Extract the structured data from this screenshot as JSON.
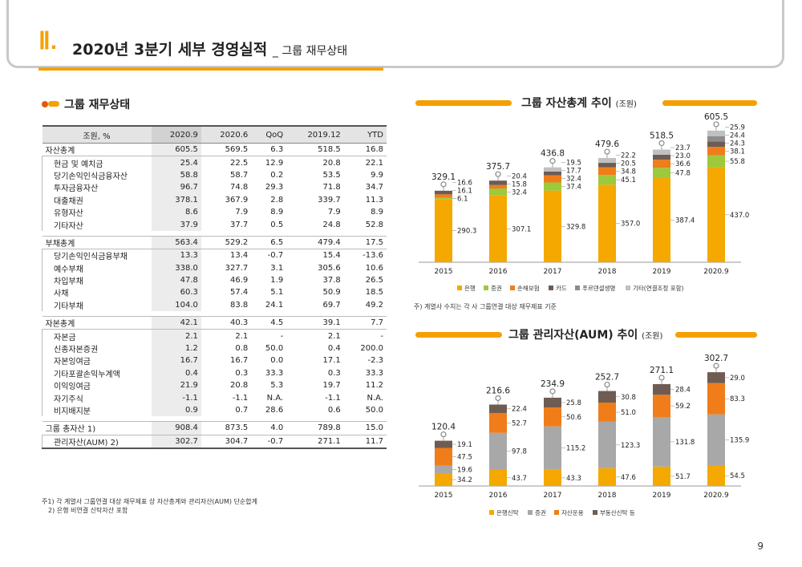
{
  "header": {
    "roman": "Ⅱ.",
    "title": "2020년 3분기 세부 경영실적",
    "subtitle": "_ 그룹 재무상태"
  },
  "left_section_title": "그룹 재무상태",
  "table": {
    "columns": [
      "조원, %",
      "2020.9",
      "2020.6",
      "QoQ",
      "2019.12",
      "YTD"
    ],
    "rows": [
      {
        "label": "자산총계",
        "type": "major",
        "values": [
          "605.5",
          "569.5",
          "6.3",
          "518.5",
          "16.8"
        ]
      },
      {
        "label": "현금 및 예치금",
        "type": "sub",
        "values": [
          "25.4",
          "22.5",
          "12.9",
          "20.8",
          "22.1"
        ]
      },
      {
        "label": "당기손익인식금융자산",
        "type": "sub",
        "values": [
          "58.8",
          "58.7",
          "0.2",
          "53.5",
          "9.9"
        ]
      },
      {
        "label": "투자금융자산",
        "type": "sub",
        "values": [
          "96.7",
          "74.8",
          "29.3",
          "71.8",
          "34.7"
        ]
      },
      {
        "label": "대출채권",
        "type": "sub",
        "values": [
          "378.1",
          "367.9",
          "2.8",
          "339.7",
          "11.3"
        ]
      },
      {
        "label": "유형자산",
        "type": "sub",
        "values": [
          "8.6",
          "7.9",
          "8.9",
          "7.9",
          "8.9"
        ]
      },
      {
        "label": "기타자산",
        "type": "sub",
        "values": [
          "37.9",
          "37.7",
          "0.5",
          "24.8",
          "52.8"
        ]
      },
      {
        "label": "부채총계",
        "type": "major",
        "values": [
          "563.4",
          "529.2",
          "6.5",
          "479.4",
          "17.5"
        ]
      },
      {
        "label": "당기손익인식금융부채",
        "type": "sub",
        "values": [
          "13.3",
          "13.4",
          "-0.7",
          "15.4",
          "-13.6"
        ]
      },
      {
        "label": "예수부채",
        "type": "sub",
        "values": [
          "338.0",
          "327.7",
          "3.1",
          "305.6",
          "10.6"
        ]
      },
      {
        "label": "차입부채",
        "type": "sub",
        "values": [
          "47.8",
          "46.9",
          "1.9",
          "37.8",
          "26.5"
        ]
      },
      {
        "label": "사채",
        "type": "sub",
        "values": [
          "60.3",
          "57.4",
          "5.1",
          "50.9",
          "18.5"
        ]
      },
      {
        "label": "기타부채",
        "type": "sub",
        "values": [
          "104.0",
          "83.8",
          "24.1",
          "69.7",
          "49.2"
        ]
      },
      {
        "label": "자본총계",
        "type": "major",
        "values": [
          "42.1",
          "40.3",
          "4.5",
          "39.1",
          "7.7"
        ]
      },
      {
        "label": "자본금",
        "type": "sub",
        "values": [
          "2.1",
          "2.1",
          "-",
          "2.1",
          "-"
        ]
      },
      {
        "label": "신종자본증권",
        "type": "sub",
        "values": [
          "1.2",
          "0.8",
          "50.0",
          "0.4",
          "200.0"
        ]
      },
      {
        "label": "자본잉여금",
        "type": "sub",
        "values": [
          "16.7",
          "16.7",
          "0.0",
          "17.1",
          "-2.3"
        ]
      },
      {
        "label": "기타포괄손익누계액",
        "type": "sub",
        "values": [
          "0.4",
          "0.3",
          "33.3",
          "0.3",
          "33.3"
        ]
      },
      {
        "label": "이익잉여금",
        "type": "sub",
        "values": [
          "21.9",
          "20.8",
          "5.3",
          "19.7",
          "11.2"
        ]
      },
      {
        "label": "자기주식",
        "type": "sub",
        "values": [
          "-1.1",
          "-1.1",
          "N.A.",
          "-1.1",
          "N.A."
        ]
      },
      {
        "label": "비지배지분",
        "type": "sub",
        "values": [
          "0.9",
          "0.7",
          "28.6",
          "0.6",
          "50.0"
        ]
      },
      {
        "label": "그룹 총자산 1)",
        "type": "major",
        "values": [
          "908.4",
          "873.5",
          "4.0",
          "789.8",
          "15.0"
        ]
      },
      {
        "label": "관리자산(AUM) 2)",
        "type": "sub",
        "values": [
          "302.7",
          "304.7",
          "-0.7",
          "271.1",
          "11.7"
        ]
      }
    ]
  },
  "footnotes": [
    "주1) 각 계열사 그룹연결 대상 재무제표 상 자산총계와 관리자산(AUM) 단순합계",
    "2) 은행 비연결 신탁자산 포함"
  ],
  "chart_note": "주) 계열사 수치는 각 사 그룹연결 대상 재무제표 기준",
  "page_number": "9",
  "chart_data": [
    {
      "type": "bar",
      "stacked": true,
      "title": "그룹 자산총계 추이",
      "unit": "(조원)",
      "categories": [
        "2015",
        "2016",
        "2017",
        "2018",
        "2019",
        "2020.9"
      ],
      "totals": [
        "329.1",
        "375.7",
        "436.8",
        "479.6",
        "518.5",
        "605.5"
      ],
      "series": [
        {
          "name": "은행",
          "color": "#f5a800",
          "values": [
            290.3,
            307.1,
            329.8,
            357.0,
            387.4,
            437.0
          ]
        },
        {
          "name": "증권",
          "color": "#9dc93c",
          "values": [
            6.1,
            32.4,
            37.4,
            45.1,
            47.8,
            55.8
          ]
        },
        {
          "name": "손해보험",
          "color": "#f07d1a",
          "values": [
            16.1,
            15.8,
            32.4,
            34.8,
            36.6,
            38.1
          ]
        },
        {
          "name": "카드",
          "color": "#6e5c52",
          "values": [
            16.6,
            20.4,
            17.7,
            20.5,
            23.0,
            24.3
          ]
        },
        {
          "name": "푸르덴셜생명",
          "color": "#8c8c8c",
          "values": [
            null,
            null,
            null,
            null,
            null,
            24.4
          ]
        },
        {
          "name": "기타(연결조정 포함)",
          "color": "#c0c0c0",
          "values": [
            null,
            null,
            19.5,
            22.2,
            23.7,
            25.9
          ]
        }
      ],
      "labels": [
        [
          "290.3",
          "6.1",
          "16.1",
          "16.6"
        ],
        [
          "307.1",
          "32.4",
          "15.8",
          "20.4"
        ],
        [
          "329.8",
          "37.4",
          "32.4",
          "17.7",
          "19.5"
        ],
        [
          "357.0",
          "45.1",
          "34.8",
          "20.5",
          "22.2"
        ],
        [
          "387.4",
          "47.8",
          "36.6",
          "23.0",
          "23.7"
        ],
        [
          "437.0",
          "55.8",
          "38.1",
          "24.3",
          "24.4",
          "25.9"
        ]
      ],
      "ylim": [
        0,
        620
      ]
    },
    {
      "type": "bar",
      "stacked": true,
      "title": "그룹 관리자산(AUM) 추이",
      "unit": "(조원)",
      "categories": [
        "2015",
        "2016",
        "2017",
        "2018",
        "2019",
        "2020.9"
      ],
      "totals": [
        "120.4",
        "216.6",
        "234.9",
        "252.7",
        "271.1",
        "302.7"
      ],
      "series": [
        {
          "name": "은행신탁",
          "color": "#f5a800",
          "values": [
            34.2,
            43.7,
            43.3,
            47.6,
            51.7,
            54.5
          ]
        },
        {
          "name": "증권",
          "color": "#a8a8a8",
          "values": [
            19.6,
            97.8,
            115.2,
            123.3,
            131.8,
            135.9
          ]
        },
        {
          "name": "자산운용",
          "color": "#f07d1a",
          "values": [
            47.5,
            52.7,
            50.6,
            51.0,
            59.2,
            83.3
          ]
        },
        {
          "name": "부동산신탁 등",
          "color": "#6e5c52",
          "values": [
            19.1,
            22.4,
            25.8,
            30.8,
            28.4,
            29.0
          ]
        }
      ],
      "labels": [
        [
          "34.2",
          "19.6",
          "47.5",
          "19.1"
        ],
        [
          "43.7",
          "97.8",
          "52.7",
          "22.4"
        ],
        [
          "43.3",
          "115.2",
          "50.6",
          "25.8"
        ],
        [
          "47.6",
          "123.3",
          "51.0",
          "30.8"
        ],
        [
          "51.7",
          "131.8",
          "59.2",
          "28.4"
        ],
        [
          "54.5",
          "135.9",
          "83.3",
          "29.0"
        ]
      ],
      "ylim": [
        0,
        320
      ]
    }
  ]
}
